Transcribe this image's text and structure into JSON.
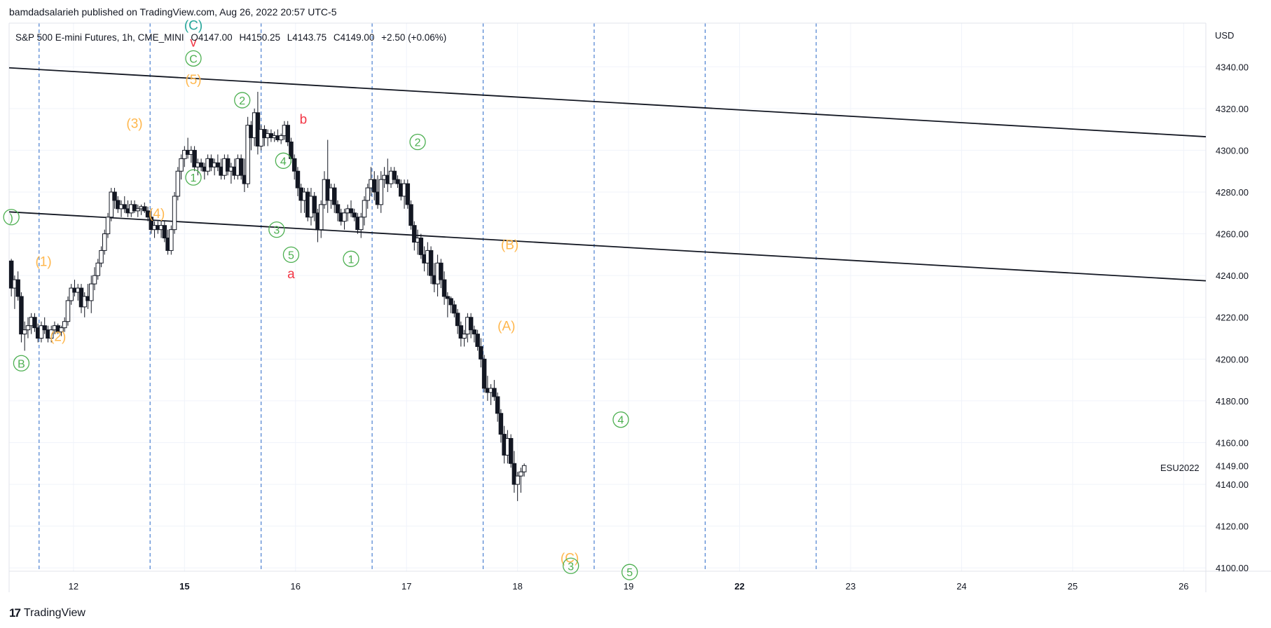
{
  "header": {
    "publisher_line": "bamdadsalarieh published on TradingView.com, Aug 26, 2022 20:57 UTC-5"
  },
  "footer": {
    "brand_mark": "17",
    "brand_name": "TradingView"
  },
  "chart_data": {
    "type": "candlestick",
    "symbol_line": {
      "name": "S&P 500 E-mini Futures, 1h, CME_MINI",
      "open": "O4147.00",
      "high": "H4150.25",
      "low": "L4143.75",
      "close": "C4149.00",
      "change": "+2.50 (+0.06%)"
    },
    "currency": "USD",
    "ticker_label": "ESU2022",
    "last_price": "4149.00",
    "y_ticks": [
      "4100.00",
      "4120.00",
      "4140.00",
      "4160.00",
      "4180.00",
      "4200.00",
      "4220.00",
      "4240.00",
      "4260.00",
      "4280.00",
      "4300.00",
      "4320.00",
      "4340.00"
    ],
    "x_ticks": [
      {
        "label": "12",
        "x": 12.0,
        "bold": false
      },
      {
        "label": "15",
        "x": 13.0,
        "bold": true
      },
      {
        "label": "16",
        "x": 14.0,
        "bold": false
      },
      {
        "label": "17",
        "x": 15.0,
        "bold": false
      },
      {
        "label": "18",
        "x": 16.0,
        "bold": false
      },
      {
        "label": "19",
        "x": 17.0,
        "bold": false
      },
      {
        "label": "22",
        "x": 18.0,
        "bold": true
      },
      {
        "label": "23",
        "x": 19.0,
        "bold": false
      },
      {
        "label": "24",
        "x": 20.0,
        "bold": false
      },
      {
        "label": "25",
        "x": 21.0,
        "bold": false
      },
      {
        "label": "26",
        "x": 22.0,
        "bold": false
      }
    ],
    "x_range": [
      11.42,
      22.2
    ],
    "y_range": [
      4098.4,
      4360.9
    ],
    "session_dividers": [
      11.69,
      12.69,
      13.69,
      14.69,
      15.69,
      16.69,
      17.69,
      18.69
    ],
    "trend_lines": [
      {
        "from": [
          11.42,
          4339.5
        ],
        "to": [
          22.2,
          4306.5
        ]
      },
      {
        "from": [
          11.42,
          4270.5
        ],
        "to": [
          22.2,
          4237.5
        ]
      }
    ],
    "candles": [
      [
        11.44,
        4247,
        4248,
        4230,
        4234
      ],
      [
        11.47,
        4234,
        4240,
        4224,
        4238
      ],
      [
        11.5,
        4238,
        4242,
        4228,
        4230
      ],
      [
        11.53,
        4230,
        4232,
        4208,
        4212
      ],
      [
        11.56,
        4212,
        4218,
        4204,
        4214
      ],
      [
        11.59,
        4214,
        4220,
        4210,
        4216
      ],
      [
        11.62,
        4216,
        4222,
        4212,
        4220
      ],
      [
        11.65,
        4220,
        4222,
        4213,
        4215
      ],
      [
        11.68,
        4215,
        4217,
        4208,
        4210
      ],
      [
        11.71,
        4210,
        4218,
        4208,
        4216
      ],
      [
        11.74,
        4216,
        4220,
        4212,
        4214
      ],
      [
        11.77,
        4214,
        4216,
        4208,
        4210
      ],
      [
        11.8,
        4210,
        4216,
        4208,
        4214
      ],
      [
        11.83,
        4214,
        4218,
        4212,
        4216
      ],
      [
        11.86,
        4216,
        4217,
        4212,
        4213
      ],
      [
        11.89,
        4213,
        4216,
        4211,
        4215
      ],
      [
        11.92,
        4215,
        4220,
        4213,
        4218
      ],
      [
        11.95,
        4218,
        4230,
        4216,
        4228
      ],
      [
        11.98,
        4228,
        4236,
        4226,
        4234
      ],
      [
        12.01,
        4234,
        4238,
        4230,
        4232
      ],
      [
        12.04,
        4232,
        4236,
        4228,
        4234
      ],
      [
        12.07,
        4234,
        4236,
        4222,
        4225
      ],
      [
        12.1,
        4225,
        4232,
        4220,
        4230
      ],
      [
        12.13,
        4230,
        4236,
        4224,
        4228
      ],
      [
        12.16,
        4228,
        4240,
        4222,
        4236
      ],
      [
        12.19,
        4236,
        4244,
        4233,
        4240
      ],
      [
        12.22,
        4240,
        4248,
        4238,
        4246
      ],
      [
        12.25,
        4246,
        4254,
        4244,
        4252
      ],
      [
        12.28,
        4252,
        4262,
        4250,
        4260
      ],
      [
        12.31,
        4260,
        4270,
        4258,
        4268
      ],
      [
        12.34,
        4268,
        4282,
        4266,
        4280
      ],
      [
        12.37,
        4280,
        4282,
        4272,
        4276
      ],
      [
        12.4,
        4276,
        4278,
        4270,
        4272
      ],
      [
        12.43,
        4272,
        4276,
        4268,
        4274
      ],
      [
        12.46,
        4274,
        4278,
        4270,
        4272
      ],
      [
        12.49,
        4272,
        4276,
        4268,
        4270
      ],
      [
        12.52,
        4270,
        4276,
        4268,
        4274
      ],
      [
        12.55,
        4274,
        4276,
        4270,
        4271
      ],
      [
        12.58,
        4271,
        4274,
        4268,
        4272
      ],
      [
        12.61,
        4272,
        4274,
        4269,
        4273
      ],
      [
        12.64,
        4273,
        4275,
        4270,
        4271
      ],
      [
        12.67,
        4271,
        4273,
        4266,
        4268
      ],
      [
        12.7,
        4268,
        4272,
        4260,
        4262
      ],
      [
        12.73,
        4262,
        4266,
        4258,
        4264
      ],
      [
        12.76,
        4264,
        4266,
        4260,
        4262
      ],
      [
        12.79,
        4262,
        4266,
        4258,
        4264
      ],
      [
        12.82,
        4264,
        4266,
        4256,
        4258
      ],
      [
        12.85,
        4258,
        4262,
        4250,
        4252
      ],
      [
        12.88,
        4252,
        4264,
        4250,
        4262
      ],
      [
        12.91,
        4262,
        4280,
        4260,
        4278
      ],
      [
        12.94,
        4278,
        4292,
        4276,
        4290
      ],
      [
        12.97,
        4290,
        4298,
        4286,
        4296
      ],
      [
        13.0,
        4296,
        4302,
        4292,
        4300
      ],
      [
        13.03,
        4300,
        4306,
        4296,
        4298
      ],
      [
        13.06,
        4298,
        4302,
        4294,
        4300
      ],
      [
        13.09,
        4300,
        4302,
        4290,
        4292
      ],
      [
        13.12,
        4292,
        4296,
        4288,
        4294
      ],
      [
        13.15,
        4294,
        4296,
        4290,
        4292
      ],
      [
        13.18,
        4292,
        4294,
        4286,
        4290
      ],
      [
        13.21,
        4290,
        4298,
        4288,
        4296
      ],
      [
        13.24,
        4296,
        4298,
        4290,
        4292
      ],
      [
        13.27,
        4292,
        4296,
        4288,
        4294
      ],
      [
        13.3,
        4294,
        4298,
        4290,
        4292
      ],
      [
        13.33,
        4292,
        4296,
        4286,
        4288
      ],
      [
        13.36,
        4288,
        4298,
        4286,
        4296
      ],
      [
        13.39,
        4296,
        4298,
        4288,
        4290
      ],
      [
        13.42,
        4290,
        4294,
        4284,
        4292
      ],
      [
        13.45,
        4292,
        4296,
        4286,
        4288
      ],
      [
        13.48,
        4288,
        4298,
        4286,
        4296
      ],
      [
        13.51,
        4296,
        4298,
        4286,
        4288
      ],
      [
        13.54,
        4288,
        4296,
        4280,
        4284
      ],
      [
        13.57,
        4284,
        4316,
        4282,
        4312
      ],
      [
        13.6,
        4312,
        4314,
        4300,
        4306
      ],
      [
        13.63,
        4306,
        4320,
        4302,
        4318
      ],
      [
        13.66,
        4318,
        4328,
        4298,
        4302
      ],
      [
        13.69,
        4302,
        4312,
        4300,
        4310
      ],
      [
        13.72,
        4310,
        4312,
        4302,
        4306
      ],
      [
        13.75,
        4306,
        4310,
        4302,
        4308
      ],
      [
        13.78,
        4308,
        4310,
        4304,
        4306
      ],
      [
        13.81,
        4306,
        4309,
        4304,
        4307
      ],
      [
        13.84,
        4307,
        4310,
        4304,
        4305
      ],
      [
        13.87,
        4305,
        4308,
        4303,
        4307
      ],
      [
        13.9,
        4307,
        4314,
        4305,
        4312
      ],
      [
        13.93,
        4312,
        4314,
        4302,
        4304
      ],
      [
        13.96,
        4304,
        4306,
        4294,
        4296
      ],
      [
        13.99,
        4296,
        4298,
        4286,
        4290
      ],
      [
        14.02,
        4290,
        4292,
        4278,
        4282
      ],
      [
        14.05,
        4282,
        4284,
        4270,
        4276
      ],
      [
        14.08,
        4276,
        4282,
        4270,
        4280
      ],
      [
        14.11,
        4280,
        4282,
        4266,
        4268
      ],
      [
        14.14,
        4268,
        4282,
        4264,
        4278
      ],
      [
        14.17,
        4278,
        4280,
        4266,
        4270
      ],
      [
        14.2,
        4270,
        4272,
        4256,
        4262
      ],
      [
        14.23,
        4262,
        4276,
        4258,
        4274
      ],
      [
        14.26,
        4274,
        4290,
        4272,
        4286
      ],
      [
        14.29,
        4286,
        4305,
        4270,
        4276
      ],
      [
        14.32,
        4276,
        4284,
        4272,
        4282
      ],
      [
        14.35,
        4282,
        4284,
        4270,
        4274
      ],
      [
        14.38,
        4274,
        4276,
        4266,
        4270
      ],
      [
        14.41,
        4270,
        4272,
        4264,
        4266
      ],
      [
        14.44,
        4266,
        4272,
        4262,
        4270
      ],
      [
        14.47,
        4270,
        4274,
        4266,
        4272
      ],
      [
        14.5,
        4272,
        4276,
        4268,
        4270
      ],
      [
        14.53,
        4270,
        4272,
        4266,
        4268
      ],
      [
        14.56,
        4268,
        4270,
        4260,
        4262
      ],
      [
        14.59,
        4262,
        4270,
        4258,
        4268
      ],
      [
        14.62,
        4268,
        4278,
        4264,
        4276
      ],
      [
        14.65,
        4276,
        4284,
        4272,
        4282
      ],
      [
        14.68,
        4282,
        4292,
        4278,
        4286
      ],
      [
        14.71,
        4286,
        4290,
        4276,
        4280
      ],
      [
        14.74,
        4280,
        4288,
        4272,
        4274
      ],
      [
        14.77,
        4274,
        4290,
        4270,
        4286
      ],
      [
        14.8,
        4286,
        4292,
        4282,
        4288
      ],
      [
        14.83,
        4288,
        4296,
        4280,
        4284
      ],
      [
        14.86,
        4284,
        4292,
        4282,
        4290
      ],
      [
        14.89,
        4290,
        4292,
        4284,
        4286
      ],
      [
        14.92,
        4286,
        4288,
        4282,
        4284
      ],
      [
        14.95,
        4284,
        4286,
        4276,
        4278
      ],
      [
        14.98,
        4278,
        4286,
        4272,
        4284
      ],
      [
        15.01,
        4284,
        4286,
        4272,
        4274
      ],
      [
        15.04,
        4274,
        4276,
        4262,
        4264
      ],
      [
        15.07,
        4264,
        4266,
        4252,
        4256
      ],
      [
        15.1,
        4256,
        4262,
        4250,
        4258
      ],
      [
        15.13,
        4258,
        4260,
        4248,
        4250
      ],
      [
        15.16,
        4250,
        4254,
        4242,
        4246
      ],
      [
        15.19,
        4246,
        4256,
        4240,
        4252
      ],
      [
        15.22,
        4252,
        4254,
        4236,
        4240
      ],
      [
        15.25,
        4240,
        4246,
        4232,
        4236
      ],
      [
        15.28,
        4236,
        4250,
        4230,
        4246
      ],
      [
        15.31,
        4246,
        4248,
        4234,
        4238
      ],
      [
        15.34,
        4238,
        4242,
        4226,
        4230
      ],
      [
        15.37,
        4230,
        4232,
        4220,
        4229
      ],
      [
        15.4,
        4229,
        4230,
        4222,
        4226
      ],
      [
        15.43,
        4226,
        4228,
        4220,
        4222
      ],
      [
        15.46,
        4222,
        4224,
        4212,
        4216
      ],
      [
        15.49,
        4216,
        4218,
        4206,
        4210
      ],
      [
        15.52,
        4210,
        4214,
        4206,
        4212
      ],
      [
        15.55,
        4212,
        4222,
        4208,
        4220
      ],
      [
        15.58,
        4220,
        4222,
        4210,
        4214
      ],
      [
        15.61,
        4214,
        4216,
        4208,
        4212
      ],
      [
        15.64,
        4212,
        4214,
        4204,
        4206
      ],
      [
        15.67,
        4206,
        4210,
        4196,
        4200
      ],
      [
        15.7,
        4200,
        4202,
        4184,
        4186
      ],
      [
        15.73,
        4186,
        4192,
        4180,
        4184
      ],
      [
        15.76,
        4184,
        4188,
        4178,
        4186
      ],
      [
        15.79,
        4186,
        4190,
        4180,
        4182
      ],
      [
        15.82,
        4182,
        4184,
        4170,
        4174
      ],
      [
        15.85,
        4174,
        4176,
        4160,
        4164
      ],
      [
        15.88,
        4164,
        4168,
        4150,
        4154
      ],
      [
        15.91,
        4154,
        4166,
        4150,
        4162
      ],
      [
        15.94,
        4162,
        4164,
        4148,
        4150
      ],
      [
        15.97,
        4150,
        4156,
        4136,
        4140
      ],
      [
        16.0,
        4140,
        4146,
        4132,
        4144
      ],
      [
        16.03,
        4144,
        4148,
        4136,
        4146
      ],
      [
        16.06,
        4146,
        4150,
        4143.75,
        4149
      ]
    ],
    "annotations": [
      {
        "text": "B",
        "x": 11.53,
        "y": 4198,
        "color": "#4caf50",
        "circled": true
      },
      {
        "text": "(1)",
        "x": 11.73,
        "y": 4247,
        "color": "#ffb74d",
        "circled": false
      },
      {
        "text": "(2)",
        "x": 11.86,
        "y": 4211,
        "color": "#ffb74d",
        "circled": false
      },
      {
        "text": "(3)",
        "x": 12.55,
        "y": 4313,
        "color": "#ffb74d",
        "circled": false
      },
      {
        "text": "(4)",
        "x": 12.75,
        "y": 4270,
        "color": "#ffb74d",
        "circled": false
      },
      {
        "text": "1",
        "x": 13.08,
        "y": 4287,
        "color": "#4caf50",
        "circled": true
      },
      {
        "text": "(5)",
        "x": 13.08,
        "y": 4334,
        "color": "#ffb74d",
        "circled": false
      },
      {
        "text": "C",
        "x": 13.08,
        "y": 4344,
        "color": "#4caf50",
        "circled": true
      },
      {
        "text": "v",
        "x": 13.08,
        "y": 4352,
        "color": "#f23645",
        "circled": false
      },
      {
        "text": "(C)",
        "x": 13.08,
        "y": 4360,
        "color": "#26a69a",
        "circled": false
      },
      {
        "text": "2",
        "x": 13.52,
        "y": 4324,
        "color": "#4caf50",
        "circled": true
      },
      {
        "text": "b",
        "x": 14.07,
        "y": 4315,
        "color": "#f23645",
        "circled": false
      },
      {
        "text": "4",
        "x": 13.89,
        "y": 4295,
        "color": "#4caf50",
        "circled": true
      },
      {
        "text": "3",
        "x": 13.83,
        "y": 4262,
        "color": "#4caf50",
        "circled": true
      },
      {
        "text": "5",
        "x": 13.96,
        "y": 4250,
        "color": "#4caf50",
        "circled": true
      },
      {
        "text": "a",
        "x": 13.96,
        "y": 4241,
        "color": "#f23645",
        "circled": false
      },
      {
        "text": "1",
        "x": 14.5,
        "y": 4248,
        "color": "#4caf50",
        "circled": true
      },
      {
        "text": "2",
        "x": 15.1,
        "y": 4304,
        "color": "#4caf50",
        "circled": true
      },
      {
        "text": "(B)",
        "x": 15.93,
        "y": 4255,
        "color": "#ffb74d",
        "circled": false
      },
      {
        "text": "(A)",
        "x": 15.9,
        "y": 4216,
        "color": "#ffb74d",
        "circled": false
      },
      {
        "text": "4",
        "x": 16.93,
        "y": 4171,
        "color": "#4caf50",
        "circled": true
      },
      {
        "text": "(C)",
        "x": 16.47,
        "y": 4105,
        "color": "#ffb74d",
        "circled": false
      },
      {
        "text": "3",
        "x": 16.48,
        "y": 4101,
        "color": "#4caf50",
        "circled": true
      },
      {
        "text": "5",
        "x": 17.01,
        "y": 4098,
        "color": "#4caf50",
        "circled": true
      },
      {
        "text": ")",
        "x": 11.44,
        "y": 4268,
        "color": "#4caf50",
        "circled": true
      }
    ]
  }
}
